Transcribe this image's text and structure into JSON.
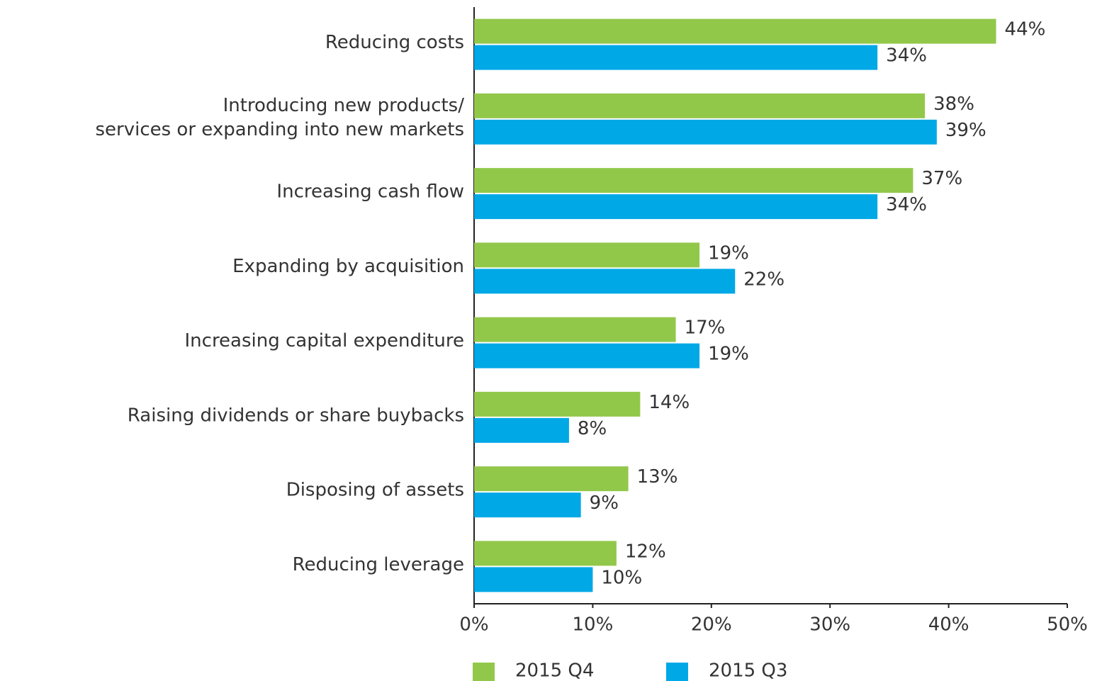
{
  "chart_data": {
    "type": "bar",
    "orientation": "horizontal",
    "categories": [
      "Reducing costs",
      "Introducing new products/\nservices or expanding into new markets",
      "Increasing cash flow",
      "Expanding by acquisition",
      "Increasing capital expenditure",
      "Raising dividends or share buybacks",
      "Disposing of assets",
      "Reducing leverage"
    ],
    "series": [
      {
        "name": "2015 Q4",
        "color": "#92c84a",
        "values": [
          44,
          38,
          37,
          19,
          17,
          14,
          13,
          12
        ],
        "value_labels": [
          "44%",
          "38%",
          "37%",
          "19%",
          "17%",
          "14%",
          "13%",
          "12%"
        ]
      },
      {
        "name": "2015 Q3",
        "color": "#00a8e6",
        "values": [
          34,
          39,
          34,
          22,
          19,
          8,
          9,
          10
        ],
        "value_labels": [
          "34%",
          "39%",
          "34%",
          "22%",
          "19%",
          "8%",
          "9%",
          "10%"
        ]
      }
    ],
    "xlim": [
      0,
      50
    ],
    "xticks": [
      {
        "value": 0,
        "label": "0%"
      },
      {
        "value": 10,
        "label": "10%"
      },
      {
        "value": 20,
        "label": "20%"
      },
      {
        "value": 30,
        "label": "30%"
      },
      {
        "value": 40,
        "label": "40%"
      },
      {
        "value": 50,
        "label": "50%"
      }
    ],
    "legend": "bottom"
  }
}
